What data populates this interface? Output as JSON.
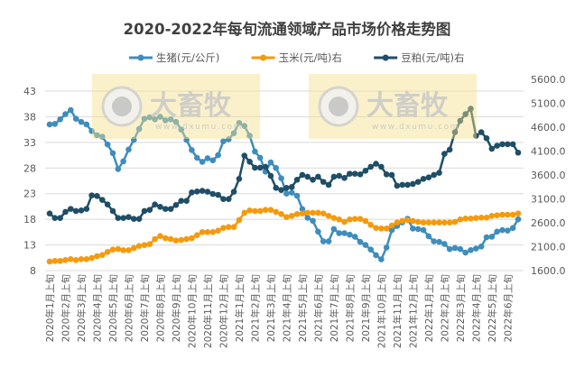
{
  "chart_data": {
    "type": "line",
    "title": "2020-2022年每旬流通领域产品市场价格走势图",
    "legend_position": "top",
    "grid": true,
    "y_left": {
      "ylim": [
        8,
        43
      ],
      "ticks": [
        "8",
        "13",
        "18",
        "23",
        "28",
        "33",
        "38",
        "43"
      ]
    },
    "y_right": {
      "ylim": [
        1600,
        5600
      ],
      "ticks": [
        "1600.0",
        "2100.0",
        "2600.0",
        "3100.0",
        "3600.0",
        "4100.0",
        "4600.0",
        "5100.0",
        "5600.0"
      ]
    },
    "x_tick_labels": [
      "2020年1月上旬",
      "2020年2月上旬",
      "2020年3月上旬",
      "2020年4月上旬",
      "2020年5月上旬",
      "2020年6月上旬",
      "2020年7月上旬",
      "2020年8月上旬",
      "2020年9月上旬",
      "2020年10月上旬",
      "2020年11月上旬",
      "2020年12月上旬",
      "2021年1月上旬",
      "2021年2月上旬",
      "2021年3月上旬",
      "2021年4月上旬",
      "2021年5月上旬",
      "2021年6月上旬",
      "2021年7月上旬",
      "2021年8月上旬",
      "2021年9月上旬",
      "2021年10月上旬",
      "2021年11月上旬",
      "2021年12月上旬",
      "2022年1月上旬",
      "2022年2月上旬",
      "2022年3月上旬",
      "2022年4月上旬",
      "2022年5月上旬",
      "2022年6月上旬"
    ],
    "series": [
      {
        "name": "生猪(元/公斤)",
        "axis": "left",
        "color": "#3f8dbd",
        "values": [
          36.5,
          36.6,
          37.5,
          38.5,
          39.3,
          37.6,
          37.0,
          36.5,
          35.2,
          34.4,
          34.1,
          32.6,
          30.9,
          27.8,
          29.3,
          31.6,
          33.5,
          35.6,
          37.6,
          37.9,
          37.5,
          38.0,
          37.3,
          37.5,
          37.0,
          35.5,
          33.5,
          31.5,
          30.0,
          29.2,
          29.9,
          29.5,
          30.5,
          33.2,
          33.6,
          34.8,
          36.8,
          36.2,
          34.3,
          31.2,
          30.0,
          27.3,
          29.1,
          28.0,
          26.0,
          23.0,
          23.2,
          22.6,
          20.0,
          18.3,
          17.7,
          15.6,
          13.7,
          13.7,
          16.1,
          15.3,
          15.3,
          15.0,
          14.6,
          13.6,
          13.0,
          12.1,
          11.0,
          10.2,
          12.5,
          15.9,
          16.7,
          17.4,
          18.1,
          16.2,
          16.1,
          15.9,
          14.7,
          13.7,
          13.6,
          13.2,
          12.2,
          12.4,
          12.2,
          11.5,
          12.0,
          12.3,
          12.7,
          14.5,
          14.6,
          15.6,
          15.9,
          15.8,
          16.3,
          18.0
        ]
      },
      {
        "name": "玉米(元/吨)右",
        "axis": "right",
        "color": "#f59a0c",
        "values": [
          1789,
          1801,
          1801,
          1820,
          1839,
          1820,
          1839,
          1839,
          1864,
          1902,
          1927,
          1990,
          2040,
          2052,
          2027,
          2027,
          2071,
          2115,
          2134,
          2153,
          2260,
          2323,
          2279,
          2260,
          2229,
          2241,
          2260,
          2279,
          2342,
          2405,
          2405,
          2405,
          2436,
          2493,
          2512,
          2512,
          2657,
          2808,
          2858,
          2846,
          2846,
          2870,
          2870,
          2827,
          2782,
          2720,
          2745,
          2783,
          2795,
          2808,
          2808,
          2808,
          2795,
          2745,
          2700,
          2669,
          2619,
          2669,
          2682,
          2682,
          2638,
          2556,
          2493,
          2480,
          2480,
          2543,
          2606,
          2638,
          2657,
          2638,
          2619,
          2606,
          2606,
          2606,
          2606,
          2606,
          2606,
          2619,
          2669,
          2688,
          2688,
          2700,
          2707,
          2707,
          2745,
          2757,
          2770,
          2770,
          2770,
          2795
        ]
      },
      {
        "name": "豆粕(元/吨)右",
        "axis": "right",
        "color": "#1f4e66",
        "values": [
          2795,
          2700,
          2700,
          2827,
          2890,
          2846,
          2858,
          2890,
          3173,
          3160,
          3079,
          2984,
          2846,
          2700,
          2700,
          2720,
          2682,
          2682,
          2846,
          2870,
          2984,
          2934,
          2890,
          2890,
          2971,
          3059,
          3059,
          3236,
          3255,
          3268,
          3249,
          3204,
          3185,
          3097,
          3097,
          3249,
          3519,
          4004,
          3878,
          3752,
          3752,
          3771,
          3582,
          3330,
          3286,
          3330,
          3349,
          3500,
          3601,
          3563,
          3500,
          3563,
          3456,
          3393,
          3563,
          3582,
          3538,
          3626,
          3626,
          3613,
          3689,
          3771,
          3834,
          3771,
          3613,
          3601,
          3374,
          3393,
          3393,
          3412,
          3456,
          3519,
          3550,
          3601,
          3645,
          4042,
          4130,
          4495,
          4734,
          4873,
          4986,
          4419,
          4495,
          4369,
          4149,
          4212,
          4244,
          4244,
          4244,
          4067
        ]
      }
    ]
  },
  "watermark": {
    "brand": "大畜牧",
    "site": "www.dxumu.com"
  }
}
